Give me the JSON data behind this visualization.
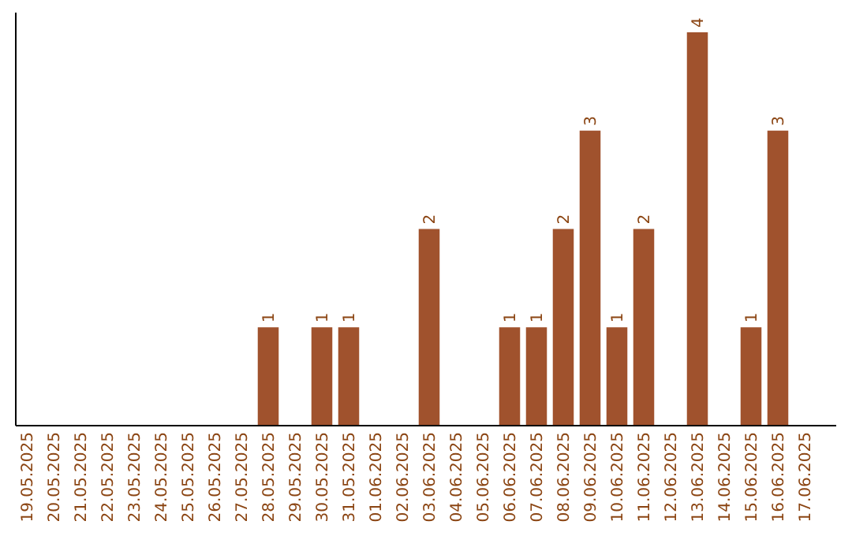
{
  "chart_data": {
    "type": "bar",
    "categories": [
      "19.05.2025",
      "20.05.2025",
      "21.05.2025",
      "22.05.2025",
      "23.05.2025",
      "24.05.2025",
      "25.05.2025",
      "26.05.2025",
      "27.05.2025",
      "28.05.2025",
      "29.05.2025",
      "30.05.2025",
      "31.05.2025",
      "01.06.2025",
      "02.06.2025",
      "03.06.2025",
      "04.06.2025",
      "05.06.2025",
      "06.06.2025",
      "07.06.2025",
      "08.06.2025",
      "09.06.2025",
      "10.06.2025",
      "11.06.2025",
      "12.06.2025",
      "13.06.2025",
      "14.06.2025",
      "15.06.2025",
      "16.06.2025",
      "17.06.2025"
    ],
    "values": [
      0,
      0,
      0,
      0,
      0,
      0,
      0,
      0,
      0,
      1,
      0,
      1,
      1,
      0,
      0,
      2,
      0,
      0,
      1,
      1,
      2,
      3,
      1,
      2,
      0,
      4,
      0,
      1,
      3,
      0
    ],
    "value_labels": [
      null,
      null,
      null,
      null,
      null,
      null,
      null,
      null,
      null,
      "1",
      null,
      "1",
      "1",
      null,
      null,
      "2",
      null,
      null,
      "1",
      "1",
      "2",
      "3",
      "1",
      "2",
      null,
      "4",
      null,
      "1",
      "3",
      null
    ],
    "color": "#a0522d",
    "ylim": [
      0,
      4.2
    ],
    "tick_labels": "x"
  }
}
